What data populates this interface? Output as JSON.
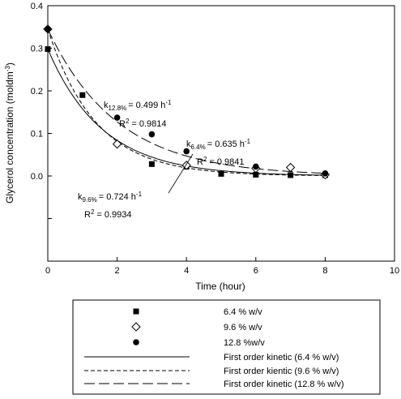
{
  "chart_data": {
    "type": "scatter",
    "xlabel": "Time (hour)",
    "ylabel_main": "Glycerol concentration (moldm",
    "ylabel_sup": "-3",
    "ylabel_close": ")",
    "xlim": [
      0,
      10
    ],
    "ylim": [
      -0.2,
      0.4
    ],
    "x_ticks": [
      0,
      2,
      4,
      6,
      8,
      10
    ],
    "x_tick_labels": [
      "0",
      "2",
      "4",
      "6",
      "8",
      "10"
    ],
    "y_ticks": [
      -0.2,
      -0.1,
      0.0,
      0.1,
      0.2,
      0.3,
      0.4
    ],
    "y_tick_labels": [
      "",
      "",
      "0.0",
      "0.1",
      "0.2",
      "0.3",
      "0.4"
    ],
    "grid": false,
    "legend_position": "bottom (below plot)",
    "series": [
      {
        "name": "6.4 % w/v",
        "marker": "filled-square",
        "x": [
          0,
          1,
          3,
          4,
          5,
          6,
          7,
          8
        ],
        "y": [
          0.298,
          0.19,
          0.028,
          0.022,
          0.005,
          0.003,
          0.002,
          0.002
        ]
      },
      {
        "name": "9.6 % w/v",
        "marker": "open-diamond",
        "x": [
          0,
          2,
          4,
          6,
          7,
          8
        ],
        "y": [
          0.345,
          0.075,
          0.025,
          0.018,
          0.02,
          0.003
        ]
      },
      {
        "name": "12.8 %w/v",
        "marker": "filled-circle",
        "x": [
          0,
          2,
          3,
          4,
          6,
          8
        ],
        "y": [
          0.345,
          0.137,
          0.098,
          0.058,
          0.022,
          0.006
        ]
      }
    ],
    "fit_lines": [
      {
        "name": "First order kinetic (6.4 % w/v)",
        "style": "solid",
        "c0": 0.298,
        "k": 0.635
      },
      {
        "name": "First order kientic (9.6 % w/v)",
        "style": "short-dash",
        "c0": 0.345,
        "k": 0.724
      },
      {
        "name": "First order kinetic (12.8 % w/v)",
        "style": "long-dash",
        "c0": 0.345,
        "k": 0.499
      }
    ],
    "annotations": [
      {
        "k_sub": "12.8%",
        "k_value": "= 0.499 h",
        "k_sup": "-1",
        "r2": "= 0.9814"
      },
      {
        "k_sub": "6.4%",
        "k_value": "= 0.635 h",
        "k_sup": "-1",
        "r2": "= 0.9841"
      },
      {
        "k_sub": "9.6%",
        "k_value": "= 0.724 h",
        "k_sup": "-1",
        "r2": "= 0.9934"
      }
    ]
  }
}
